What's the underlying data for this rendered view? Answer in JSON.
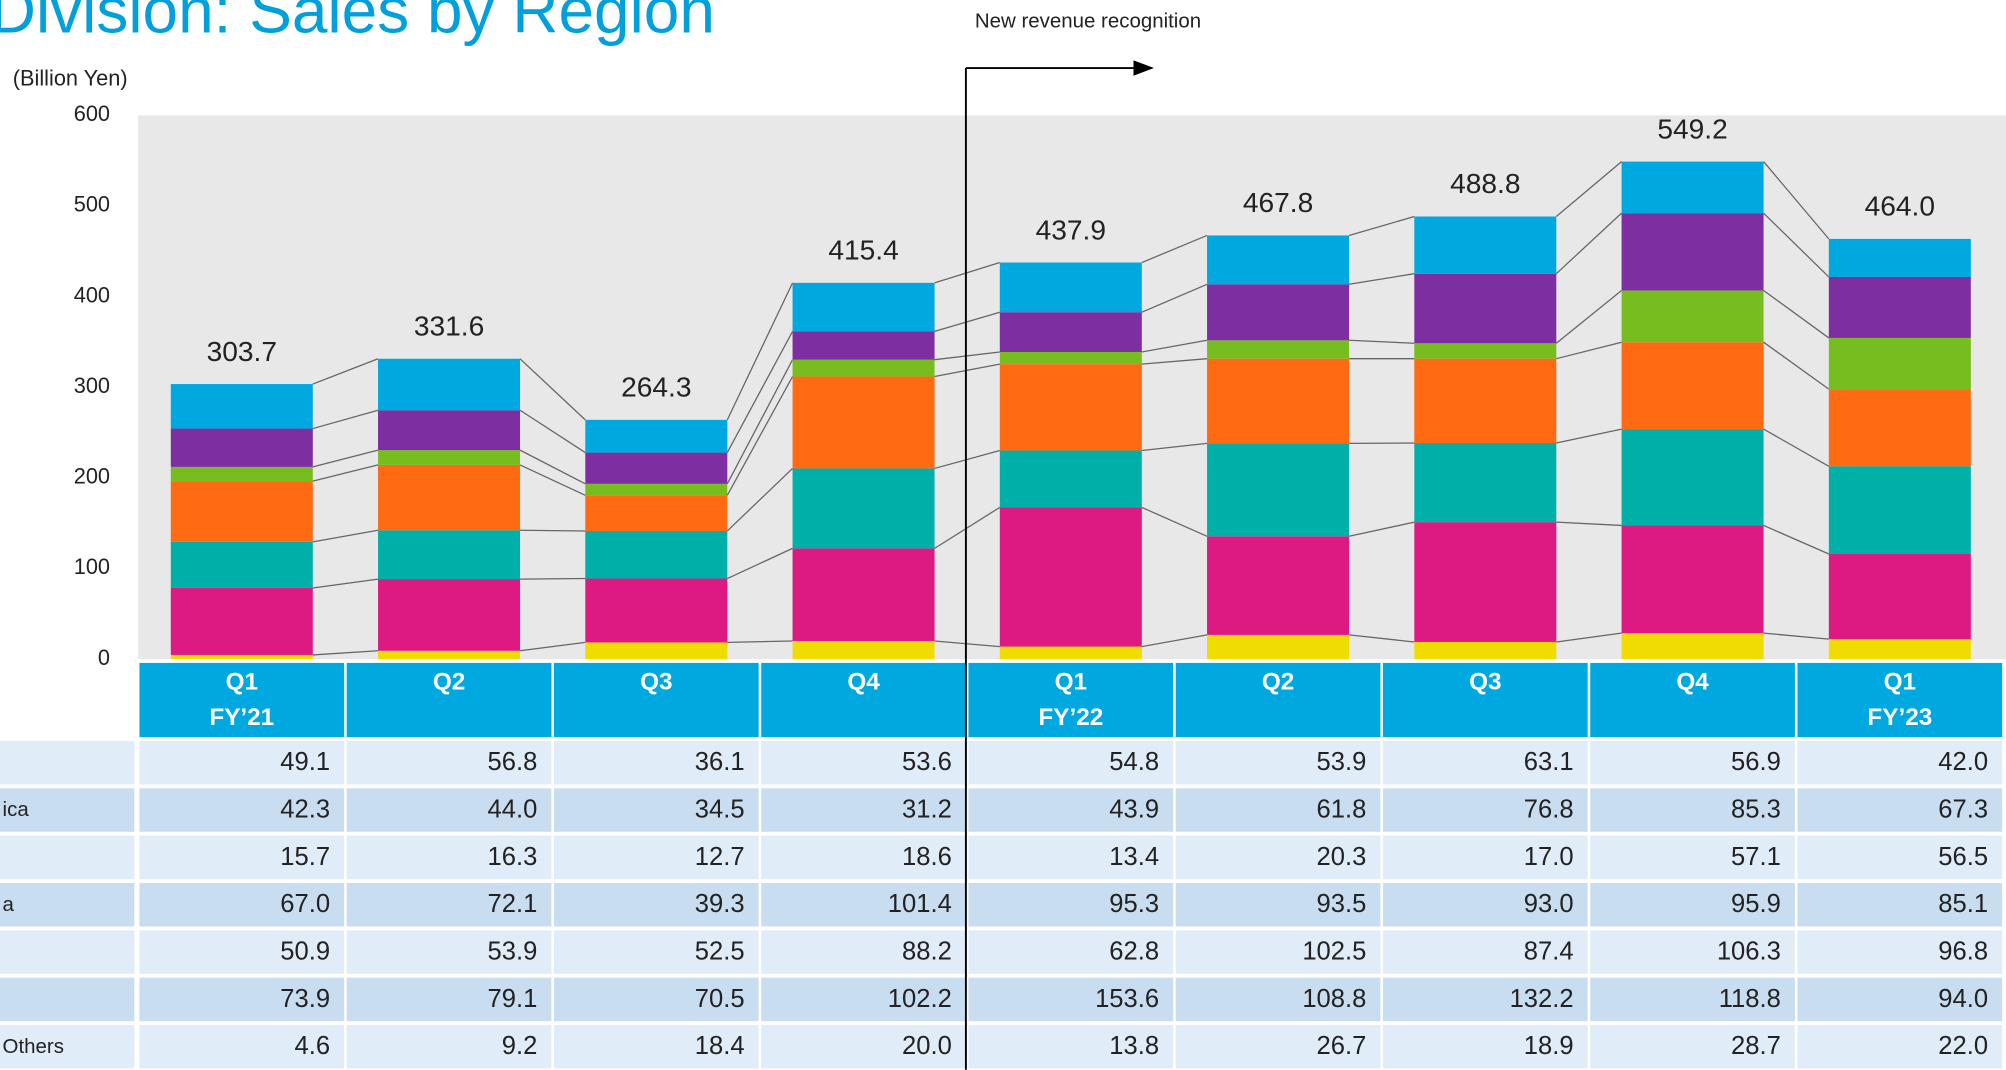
{
  "chart_data": {
    "type": "stacked_bar",
    "title": "Division: Sales by Region",
    "y_label": "(Billion Yen)",
    "annotation": "New revenue recognition",
    "categories": [
      "Q1\nFY’21",
      "Q2",
      "Q3",
      "Q4",
      "Q1\nFY’22",
      "Q2",
      "Q3",
      "Q4",
      "Q1\nFY’23"
    ],
    "ylim": [
      0,
      600
    ],
    "yticks": [
      0,
      100,
      200,
      300,
      400,
      500,
      600
    ],
    "grid": false,
    "totals": [
      303.7,
      331.6,
      264.3,
      415.4,
      437.9,
      467.8,
      488.8,
      549.2,
      464.0
    ],
    "total_labels": [
      "303.7",
      "331.6",
      "264.3",
      "415.4",
      "437.9",
      "467.8",
      "488.8",
      "549.2",
      "464.0"
    ],
    "series": [
      {
        "name": null,
        "color": "#00a8e0",
        "values": [
          49.1,
          56.8,
          36.1,
          53.6,
          54.8,
          53.9,
          63.1,
          56.9,
          42.0
        ],
        "value_labels": [
          "49.1",
          "56.8",
          "36.1",
          "53.6",
          "54.8",
          "53.9",
          "63.1",
          "56.9",
          "42.0"
        ]
      },
      {
        "name": "ica",
        "color": "#7d2fa2",
        "values": [
          42.3,
          44.0,
          34.5,
          31.2,
          43.9,
          61.8,
          76.8,
          85.3,
          67.3
        ],
        "value_labels": [
          "42.3",
          "44.0",
          "34.5",
          "31.2",
          "43.9",
          "61.8",
          "76.8",
          "85.3",
          "67.3"
        ]
      },
      {
        "name": null,
        "color": "#78bd20",
        "values": [
          15.7,
          16.3,
          12.7,
          18.6,
          13.4,
          20.3,
          17.0,
          57.1,
          56.5
        ],
        "value_labels": [
          "15.7",
          "16.3",
          "12.7",
          "18.6",
          "13.4",
          "20.3",
          "17.0",
          "57.1",
          "56.5"
        ]
      },
      {
        "name": "a",
        "color": "#ff6a13",
        "values": [
          67.0,
          72.1,
          39.3,
          101.4,
          95.3,
          93.5,
          93.0,
          95.9,
          85.1
        ],
        "value_labels": [
          "67.0",
          "72.1",
          "39.3",
          "101.4",
          "95.3",
          "93.5",
          "93.0",
          "95.9",
          "85.1"
        ]
      },
      {
        "name": null,
        "color": "#00b0a8",
        "values": [
          50.9,
          53.9,
          52.5,
          88.2,
          62.8,
          102.5,
          87.4,
          106.3,
          96.8
        ],
        "value_labels": [
          "50.9",
          "53.9",
          "52.5",
          "88.2",
          "62.8",
          "102.5",
          "87.4",
          "106.3",
          "96.8"
        ]
      },
      {
        "name": null,
        "color": "#dc1a82",
        "values": [
          73.9,
          79.1,
          70.5,
          102.2,
          153.6,
          108.8,
          132.2,
          118.8,
          94.0
        ],
        "value_labels": [
          "73.9",
          "79.1",
          "70.5",
          "102.2",
          "153.6",
          "108.8",
          "132.2",
          "118.8",
          "94.0"
        ]
      },
      {
        "name": "Others",
        "color": "#f0dc00",
        "values": [
          4.6,
          9.2,
          18.4,
          20.0,
          13.8,
          26.7,
          18.9,
          28.7,
          22.0
        ],
        "value_labels": [
          "4.6",
          "9.2",
          "18.4",
          "20.0",
          "13.8",
          "26.7",
          "18.9",
          "28.7",
          "22.0"
        ]
      }
    ]
  }
}
